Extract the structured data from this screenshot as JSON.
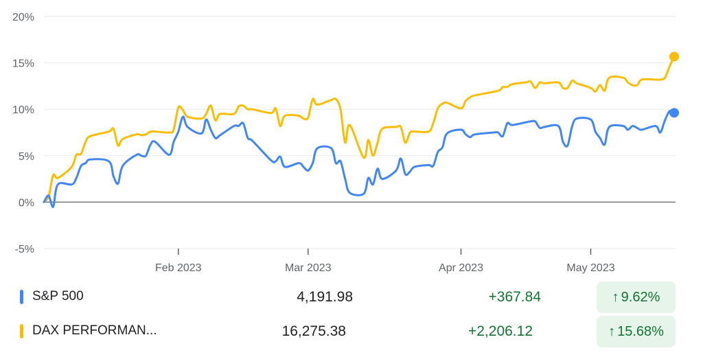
{
  "chart_data": {
    "type": "line",
    "title": "",
    "xlabel": "",
    "ylabel": "",
    "y_unit": "%",
    "ylim": [
      -5,
      20
    ],
    "y_ticks": [
      -5,
      0,
      5,
      10,
      15,
      20
    ],
    "y_tick_labels": [
      "-5%",
      "0%",
      "5%",
      "10%",
      "15%",
      "20%"
    ],
    "x_ticks": [
      {
        "date": "2023-02-01",
        "label": "Feb 2023"
      },
      {
        "date": "2023-03-01",
        "label": "Mar 2023"
      },
      {
        "date": "2023-04-03",
        "label": "Apr 2023"
      },
      {
        "date": "2023-05-01",
        "label": "May 2023"
      }
    ],
    "xlim": [
      "2023-01-03",
      "2023-05-19"
    ],
    "grid": true,
    "series": [
      {
        "name": "S&P 500",
        "color": "#4285f4",
        "end_marker": true,
        "points": [
          [
            "2023-01-03",
            0.0
          ],
          [
            "2023-01-04",
            0.7
          ],
          [
            "2023-01-05",
            -0.5
          ],
          [
            "2023-01-06",
            1.9
          ],
          [
            "2023-01-09",
            1.9
          ],
          [
            "2023-01-10",
            2.6
          ],
          [
            "2023-01-11",
            3.9
          ],
          [
            "2023-01-12",
            4.2
          ],
          [
            "2023-01-13",
            4.6
          ],
          [
            "2023-01-17",
            4.4
          ],
          [
            "2023-01-18",
            2.8
          ],
          [
            "2023-01-19",
            2.0
          ],
          [
            "2023-01-20",
            3.9
          ],
          [
            "2023-01-23",
            5.1
          ],
          [
            "2023-01-24",
            5.0
          ],
          [
            "2023-01-25",
            5.0
          ],
          [
            "2023-01-26",
            6.2
          ],
          [
            "2023-01-27",
            6.5
          ],
          [
            "2023-01-30",
            5.1
          ],
          [
            "2023-01-31",
            6.5
          ],
          [
            "2023-02-01",
            7.6
          ],
          [
            "2023-02-02",
            9.2
          ],
          [
            "2023-02-03",
            8.1
          ],
          [
            "2023-02-06",
            7.4
          ],
          [
            "2023-02-07",
            8.9
          ],
          [
            "2023-02-08",
            7.8
          ],
          [
            "2023-02-09",
            6.9
          ],
          [
            "2023-02-10",
            7.2
          ],
          [
            "2023-02-13",
            8.2
          ],
          [
            "2023-02-14",
            8.2
          ],
          [
            "2023-02-15",
            8.5
          ],
          [
            "2023-02-16",
            6.9
          ],
          [
            "2023-02-17",
            6.6
          ],
          [
            "2023-02-21",
            4.5
          ],
          [
            "2023-02-22",
            4.4
          ],
          [
            "2023-02-23",
            4.9
          ],
          [
            "2023-02-24",
            3.8
          ],
          [
            "2023-02-27",
            4.2
          ],
          [
            "2023-02-28",
            3.8
          ],
          [
            "2023-03-01",
            3.4
          ],
          [
            "2023-03-02",
            4.2
          ],
          [
            "2023-03-03",
            5.8
          ],
          [
            "2023-03-06",
            5.8
          ],
          [
            "2023-03-07",
            4.2
          ],
          [
            "2023-03-08",
            4.4
          ],
          [
            "2023-03-09",
            2.5
          ],
          [
            "2023-03-10",
            1.0
          ],
          [
            "2023-03-13",
            0.9
          ],
          [
            "2023-03-14",
            2.6
          ],
          [
            "2023-03-15",
            1.9
          ],
          [
            "2023-03-16",
            3.6
          ],
          [
            "2023-03-17",
            2.5
          ],
          [
            "2023-03-20",
            3.4
          ],
          [
            "2023-03-21",
            4.7
          ],
          [
            "2023-03-22",
            3.0
          ],
          [
            "2023-03-23",
            3.3
          ],
          [
            "2023-03-24",
            3.8
          ],
          [
            "2023-03-27",
            4.0
          ],
          [
            "2023-03-28",
            3.9
          ],
          [
            "2023-03-29",
            5.4
          ],
          [
            "2023-03-30",
            5.9
          ],
          [
            "2023-03-31",
            7.4
          ],
          [
            "2023-04-03",
            7.8
          ],
          [
            "2023-04-04",
            7.3
          ],
          [
            "2023-04-05",
            7.0
          ],
          [
            "2023-04-06",
            7.3
          ],
          [
            "2023-04-10",
            7.5
          ],
          [
            "2023-04-11",
            7.5
          ],
          [
            "2023-04-12",
            7.1
          ],
          [
            "2023-04-13",
            8.5
          ],
          [
            "2023-04-14",
            8.3
          ],
          [
            "2023-04-17",
            8.6
          ],
          [
            "2023-04-18",
            8.7
          ],
          [
            "2023-04-19",
            8.7
          ],
          [
            "2023-04-20",
            8.0
          ],
          [
            "2023-04-21",
            8.1
          ],
          [
            "2023-04-24",
            8.2
          ],
          [
            "2023-04-25",
            6.5
          ],
          [
            "2023-04-26",
            6.1
          ],
          [
            "2023-04-27",
            8.2
          ],
          [
            "2023-04-28",
            9.0
          ],
          [
            "2023-05-01",
            8.9
          ],
          [
            "2023-05-02",
            7.6
          ],
          [
            "2023-05-03",
            6.9
          ],
          [
            "2023-05-04",
            6.2
          ],
          [
            "2023-05-05",
            8.1
          ],
          [
            "2023-05-08",
            8.2
          ],
          [
            "2023-05-09",
            7.8
          ],
          [
            "2023-05-10",
            8.2
          ],
          [
            "2023-05-11",
            8.0
          ],
          [
            "2023-05-12",
            7.8
          ],
          [
            "2023-05-15",
            8.2
          ],
          [
            "2023-05-16",
            7.5
          ],
          [
            "2023-05-17",
            8.8
          ],
          [
            "2023-05-18",
            9.8
          ],
          [
            "2023-05-19",
            9.62
          ]
        ]
      },
      {
        "name": "DAX PERFORMANCE-INDEX",
        "color": "#fbbc04",
        "end_marker": true,
        "points": [
          [
            "2023-01-03",
            0.0
          ],
          [
            "2023-01-04",
            0.6
          ],
          [
            "2023-01-05",
            2.9
          ],
          [
            "2023-01-06",
            2.6
          ],
          [
            "2023-01-09",
            3.8
          ],
          [
            "2023-01-10",
            5.1
          ],
          [
            "2023-01-11",
            5.2
          ],
          [
            "2023-01-12",
            6.5
          ],
          [
            "2023-01-13",
            7.1
          ],
          [
            "2023-01-17",
            7.6
          ],
          [
            "2023-01-18",
            7.9
          ],
          [
            "2023-01-19",
            6.1
          ],
          [
            "2023-01-20",
            6.8
          ],
          [
            "2023-01-23",
            7.3
          ],
          [
            "2023-01-24",
            7.2
          ],
          [
            "2023-01-25",
            7.3
          ],
          [
            "2023-01-26",
            7.6
          ],
          [
            "2023-01-27",
            7.6
          ],
          [
            "2023-01-30",
            7.5
          ],
          [
            "2023-01-31",
            7.8
          ],
          [
            "2023-02-01",
            10.2
          ],
          [
            "2023-02-02",
            9.9
          ],
          [
            "2023-02-03",
            9.2
          ],
          [
            "2023-02-06",
            9.0
          ],
          [
            "2023-02-07",
            9.5
          ],
          [
            "2023-02-08",
            10.4
          ],
          [
            "2023-02-09",
            8.8
          ],
          [
            "2023-02-10",
            9.5
          ],
          [
            "2023-02-13",
            9.5
          ],
          [
            "2023-02-14",
            10.3
          ],
          [
            "2023-02-15",
            10.4
          ],
          [
            "2023-02-16",
            10.0
          ],
          [
            "2023-02-17",
            10.0
          ],
          [
            "2023-02-21",
            9.6
          ],
          [
            "2023-02-22",
            10.1
          ],
          [
            "2023-02-23",
            8.2
          ],
          [
            "2023-02-24",
            9.3
          ],
          [
            "2023-02-27",
            9.3
          ],
          [
            "2023-02-28",
            9.0
          ],
          [
            "2023-03-01",
            9.1
          ],
          [
            "2023-03-02",
            11.1
          ],
          [
            "2023-03-03",
            10.5
          ],
          [
            "2023-03-06",
            11.0
          ],
          [
            "2023-03-07",
            11.1
          ],
          [
            "2023-03-08",
            10.0
          ],
          [
            "2023-03-09",
            6.4
          ],
          [
            "2023-03-10",
            8.3
          ],
          [
            "2023-03-13",
            4.8
          ],
          [
            "2023-03-14",
            6.7
          ],
          [
            "2023-03-15",
            5.0
          ],
          [
            "2023-03-16",
            6.4
          ],
          [
            "2023-03-17",
            7.9
          ],
          [
            "2023-03-20",
            8.1
          ],
          [
            "2023-03-21",
            8.1
          ],
          [
            "2023-03-22",
            6.4
          ],
          [
            "2023-03-23",
            7.5
          ],
          [
            "2023-03-24",
            7.6
          ],
          [
            "2023-03-27",
            7.6
          ],
          [
            "2023-03-28",
            8.5
          ],
          [
            "2023-03-29",
            10.1
          ],
          [
            "2023-03-30",
            10.6
          ],
          [
            "2023-03-31",
            10.7
          ],
          [
            "2023-04-03",
            10.1
          ],
          [
            "2023-04-04",
            10.9
          ],
          [
            "2023-04-05",
            11.3
          ],
          [
            "2023-04-06",
            11.5
          ],
          [
            "2023-04-11",
            12.0
          ],
          [
            "2023-04-12",
            12.4
          ],
          [
            "2023-04-13",
            12.4
          ],
          [
            "2023-04-14",
            12.7
          ],
          [
            "2023-04-17",
            12.9
          ],
          [
            "2023-04-18",
            13.0
          ],
          [
            "2023-04-19",
            12.3
          ],
          [
            "2023-04-20",
            12.9
          ],
          [
            "2023-04-21",
            12.8
          ],
          [
            "2023-04-24",
            12.9
          ],
          [
            "2023-04-25",
            12.3
          ],
          [
            "2023-04-26",
            12.3
          ],
          [
            "2023-04-27",
            13.1
          ],
          [
            "2023-04-28",
            12.8
          ],
          [
            "2023-05-01",
            12.3
          ],
          [
            "2023-05-02",
            11.9
          ],
          [
            "2023-05-03",
            12.6
          ],
          [
            "2023-05-04",
            12.0
          ],
          [
            "2023-05-05",
            13.4
          ],
          [
            "2023-05-08",
            13.4
          ],
          [
            "2023-05-09",
            12.9
          ],
          [
            "2023-05-10",
            12.6
          ],
          [
            "2023-05-11",
            12.6
          ],
          [
            "2023-05-12",
            13.2
          ],
          [
            "2023-05-15",
            13.2
          ],
          [
            "2023-05-16",
            13.2
          ],
          [
            "2023-05-17",
            13.4
          ],
          [
            "2023-05-18",
            14.6
          ],
          [
            "2023-05-19",
            15.68
          ]
        ]
      }
    ]
  },
  "legend": [
    {
      "name": "S&P 500",
      "color": "#4285f4",
      "value": "4,191.98",
      "change": "+367.84",
      "percent": "9.62%",
      "arrow_icon": "arrow-up-icon"
    },
    {
      "name": "DAX PERFORMAN...",
      "color": "#fbbc04",
      "value": "16,275.38",
      "change": "+2,206.12",
      "percent": "15.68%",
      "arrow_icon": "arrow-up-icon"
    }
  ],
  "colors": {
    "grid": "#e8eaed",
    "zero_line": "#5f6368",
    "tick_text": "#5f6368",
    "positive": "#137333",
    "positive_bg": "#e6f4ea"
  }
}
